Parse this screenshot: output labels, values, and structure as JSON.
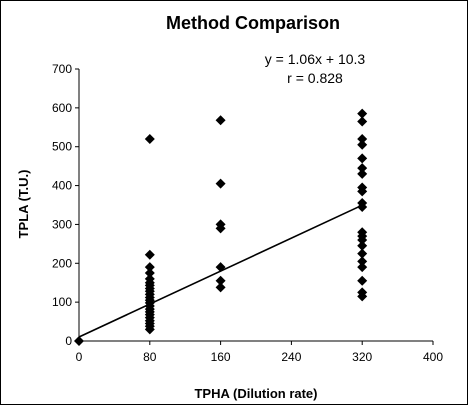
{
  "chart_data": {
    "type": "scatter",
    "title": "Method Comparison",
    "xlabel": "TPHA (Dilution rate)",
    "ylabel": "TPLA (T.U.)",
    "xlim": [
      0,
      400
    ],
    "ylim": [
      0,
      700
    ],
    "x_ticks": [
      "0",
      "80",
      "160",
      "240",
      "320",
      "400"
    ],
    "y_ticks": [
      "0",
      "100",
      "200",
      "300",
      "400",
      "500",
      "600",
      "700"
    ],
    "grid": false,
    "legend": "none",
    "annotations": {
      "equation": "y = 1.06x + 10.3",
      "r": "r = 0.828"
    },
    "trendline": {
      "slope": 1.06,
      "intercept": 10.3,
      "x_range": [
        0,
        320
      ]
    },
    "marker_color": "#000000",
    "series": [
      {
        "points": [
          [
            0,
            0
          ],
          [
            80,
            520
          ],
          [
            80,
            222
          ],
          [
            80,
            190
          ],
          [
            80,
            175
          ],
          [
            80,
            160
          ],
          [
            80,
            150
          ],
          [
            80,
            143
          ],
          [
            80,
            135
          ],
          [
            80,
            128
          ],
          [
            80,
            120
          ],
          [
            80,
            112
          ],
          [
            80,
            105
          ],
          [
            80,
            98
          ],
          [
            80,
            90
          ],
          [
            80,
            82
          ],
          [
            80,
            75
          ],
          [
            80,
            68
          ],
          [
            80,
            60
          ],
          [
            80,
            52
          ],
          [
            80,
            45
          ],
          [
            80,
            38
          ],
          [
            80,
            30
          ],
          [
            160,
            568
          ],
          [
            160,
            405
          ],
          [
            160,
            300
          ],
          [
            160,
            290
          ],
          [
            160,
            190
          ],
          [
            160,
            155
          ],
          [
            160,
            138
          ],
          [
            320,
            585
          ],
          [
            320,
            565
          ],
          [
            320,
            520
          ],
          [
            320,
            505
          ],
          [
            320,
            470
          ],
          [
            320,
            445
          ],
          [
            320,
            430
          ],
          [
            320,
            395
          ],
          [
            320,
            385
          ],
          [
            320,
            355
          ],
          [
            320,
            345
          ],
          [
            320,
            280
          ],
          [
            320,
            270
          ],
          [
            320,
            260
          ],
          [
            320,
            245
          ],
          [
            320,
            225
          ],
          [
            320,
            205
          ],
          [
            320,
            190
          ],
          [
            320,
            155
          ],
          [
            320,
            125
          ],
          [
            320,
            115
          ]
        ]
      }
    ]
  }
}
